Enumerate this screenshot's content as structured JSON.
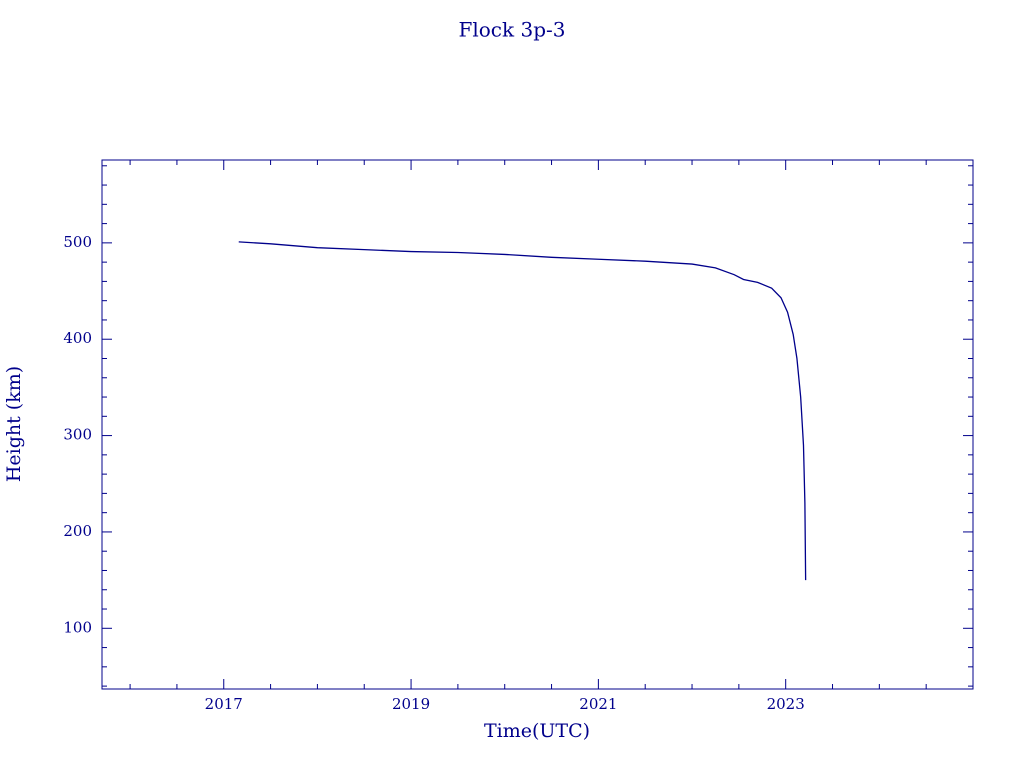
{
  "chart_data": {
    "type": "line",
    "title": "Flock 3p-3",
    "xlabel": "Time(UTC)",
    "ylabel": "Height (km)",
    "color": "#00008b",
    "x": [
      2017.16,
      2017.5,
      2018,
      2018.5,
      2019,
      2019.5,
      2020,
      2020.5,
      2021,
      2021.5,
      2022,
      2022.25,
      2022.45,
      2022.55,
      2022.7,
      2022.85,
      2022.95,
      2023.02,
      2023.08,
      2023.12,
      2023.16,
      2023.19,
      2023.205,
      2023.213
    ],
    "values": [
      501,
      499,
      495,
      493,
      491,
      490,
      488,
      485,
      483,
      481,
      478,
      474,
      467,
      462,
      459,
      453,
      443,
      428,
      405,
      380,
      340,
      290,
      230,
      150
    ],
    "xlim": [
      2015.7,
      2025.0
    ],
    "xticks": [
      2017,
      2019,
      2021,
      2023
    ],
    "xminorticks": [
      2016,
      2016.5,
      2017.5,
      2018,
      2018.5,
      2019.5,
      2020,
      2020.5,
      2021.5,
      2022,
      2022.5,
      2023.5,
      2024,
      2024.5
    ],
    "ylim": [
      37,
      586
    ],
    "yticks": [
      100,
      200,
      300,
      400,
      500
    ],
    "yminorticks": [
      40,
      60,
      80,
      120,
      140,
      160,
      180,
      220,
      240,
      260,
      280,
      320,
      340,
      360,
      380,
      420,
      440,
      460,
      480,
      520,
      540,
      560,
      580
    ]
  }
}
